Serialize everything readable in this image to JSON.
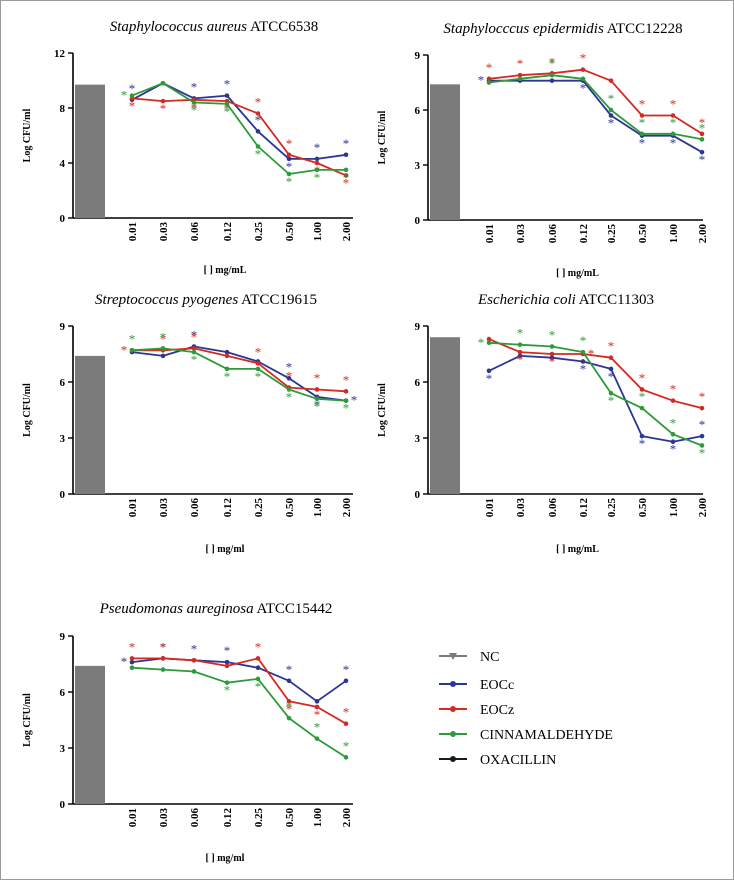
{
  "colors": {
    "NC": "#7b7b7b",
    "EOCc": "#2b3592",
    "EOCz": "#d32a22",
    "CINNAMALDEHYDE": "#2e9a3a",
    "OXACILLIN": "#1a1a1a"
  },
  "legend": [
    {
      "name": "NC",
      "marker": "triangle"
    },
    {
      "name": "EOCc",
      "marker": "circle"
    },
    {
      "name": "EOCz",
      "marker": "circle"
    },
    {
      "name": "CINNAMALDEHYDE",
      "marker": "circle"
    },
    {
      "name": "OXACILLIN",
      "marker": "circle"
    }
  ],
  "chart_data": [
    {
      "type": "line",
      "title_italic": "Staphylococcus aureus",
      "title_rest": " ATCC6538",
      "ylabel": "Log CFU/ml",
      "xlabel": "[ ] mg/mL",
      "ylim": [
        0,
        12
      ],
      "yticks": [
        "0",
        "4",
        "8",
        "12"
      ],
      "categories": [
        "0.01",
        "0.03",
        "0.06",
        "0.12",
        "0.25",
        "0.50",
        "1.00",
        "2.00"
      ],
      "nc_value": 9.7,
      "series": [
        {
          "name": "EOCc",
          "values": [
            8.6,
            9.8,
            8.7,
            8.9,
            6.3,
            4.3,
            4.3,
            4.6
          ],
          "stars": [
            "above",
            "none",
            "above",
            "above",
            "above",
            "below",
            "above",
            "above"
          ]
        },
        {
          "name": "EOCz",
          "values": [
            8.7,
            8.5,
            8.6,
            8.5,
            7.6,
            4.6,
            4.0,
            3.1
          ],
          "stars": [
            "below",
            "below",
            "below",
            "below",
            "above",
            "above",
            "below",
            "below"
          ]
        },
        {
          "name": "CINNAMALDEHYDE",
          "values": [
            8.9,
            9.8,
            8.4,
            8.3,
            5.2,
            3.2,
            3.5,
            3.5
          ],
          "stars": [
            "left",
            "none",
            "below",
            "below",
            "below",
            "below",
            "below",
            "below"
          ]
        }
      ]
    },
    {
      "type": "line",
      "title_italic": "Staphylocccus epidermidis",
      "title_rest": " ATCC12228",
      "ylabel": "Log CFU/ml",
      "xlabel": "[ ] mg/mL",
      "ylim": [
        0,
        9
      ],
      "yticks": [
        "0",
        "3",
        "6",
        "9"
      ],
      "categories": [
        "0.01",
        "0.03",
        "0.06",
        "0.12",
        "0.25",
        "0.50",
        "1.00",
        "2.00"
      ],
      "nc_value": 7.4,
      "series": [
        {
          "name": "EOCc",
          "values": [
            7.6,
            7.6,
            7.6,
            7.6,
            5.7,
            4.6,
            4.6,
            3.7
          ],
          "stars": [
            "left",
            "none",
            "none",
            "below",
            "below",
            "below",
            "below",
            "below"
          ]
        },
        {
          "name": "EOCz",
          "values": [
            7.7,
            7.9,
            8.0,
            8.2,
            7.6,
            5.7,
            5.7,
            4.7
          ],
          "stars": [
            "above",
            "above",
            "above",
            "above",
            "none",
            "above",
            "above",
            "above"
          ]
        },
        {
          "name": "CINNAMALDEHYDE",
          "values": [
            7.5,
            7.7,
            7.9,
            7.7,
            6.0,
            4.7,
            4.7,
            4.4
          ],
          "stars": [
            "none",
            "none",
            "above",
            "none",
            "above",
            "above",
            "above",
            "above"
          ]
        }
      ]
    },
    {
      "type": "line",
      "title_italic": "Streptococcus pyogenes",
      "title_rest": " ATCC19615",
      "ylabel": "Log CFU/ml",
      "xlabel": "[ ] mg/ml",
      "ylim": [
        0,
        9
      ],
      "yticks": [
        "0",
        "3",
        "6",
        "9"
      ],
      "categories": [
        "0.01",
        "0.03",
        "0.06",
        "0.12",
        "0.25",
        "0.50",
        "1.00",
        "2.00"
      ],
      "nc_value": 7.4,
      "series": [
        {
          "name": "EOCc",
          "values": [
            7.6,
            7.4,
            7.9,
            7.6,
            7.1,
            6.2,
            5.2,
            5.0
          ],
          "stars": [
            "none",
            "none",
            "above",
            "none",
            "none",
            "above",
            "below",
            "right"
          ]
        },
        {
          "name": "EOCz",
          "values": [
            7.7,
            7.7,
            7.8,
            7.4,
            7.0,
            5.7,
            5.6,
            5.5
          ],
          "stars": [
            "left",
            "above",
            "above",
            "none",
            "above",
            "above",
            "above",
            "above"
          ]
        },
        {
          "name": "CINNAMALDEHYDE",
          "values": [
            7.7,
            7.8,
            7.6,
            6.7,
            6.7,
            5.6,
            5.1,
            5.0
          ],
          "stars": [
            "above",
            "above",
            "below",
            "below",
            "below",
            "below",
            "below",
            "below"
          ]
        }
      ]
    },
    {
      "type": "line",
      "title_italic": "Escherichia coli",
      "title_rest": " ATCC11303",
      "ylabel": "Log CFU/ml",
      "xlabel": "[ ] mg/mL",
      "ylim": [
        0,
        9
      ],
      "yticks": [
        "0",
        "3",
        "6",
        "9"
      ],
      "categories": [
        "0.01",
        "0.03",
        "0.06",
        "0.12",
        "0.25",
        "0.50",
        "1.00",
        "2.00"
      ],
      "nc_value": 8.4,
      "series": [
        {
          "name": "EOCc",
          "values": [
            6.6,
            7.4,
            7.3,
            7.1,
            6.7,
            3.1,
            2.8,
            3.1
          ],
          "stars": [
            "below",
            "none",
            "none",
            "below",
            "below",
            "below",
            "below",
            "above"
          ]
        },
        {
          "name": "EOCz",
          "values": [
            8.3,
            7.6,
            7.5,
            7.5,
            7.3,
            5.6,
            5.0,
            4.6
          ],
          "stars": [
            "none",
            "below",
            "below",
            "right",
            "above",
            "above",
            "above",
            "above"
          ]
        },
        {
          "name": "CINNAMALDEHYDE",
          "values": [
            8.1,
            8.0,
            7.9,
            7.6,
            5.4,
            4.6,
            3.2,
            2.6
          ],
          "stars": [
            "left",
            "above",
            "above",
            "above",
            "below",
            "above",
            "above",
            "below"
          ]
        }
      ]
    },
    {
      "type": "line",
      "title_italic": "Pseudomonas aureginosa",
      "title_rest": " ATCC15442",
      "ylabel": "Log CFU/ml",
      "xlabel": "[ ] mg/ml",
      "ylim": [
        0,
        9
      ],
      "yticks": [
        "0",
        "3",
        "6",
        "9"
      ],
      "categories": [
        "0.01",
        "0.03",
        "0.06",
        "0.12",
        "0.25",
        "0.50",
        "1.00",
        "2.00"
      ],
      "nc_value": 7.4,
      "series": [
        {
          "name": "EOCc",
          "values": [
            7.6,
            7.8,
            7.7,
            7.6,
            7.3,
            6.6,
            5.5,
            6.6
          ],
          "stars": [
            "left",
            "above",
            "above",
            "above",
            "none",
            "above",
            "below",
            "above"
          ]
        },
        {
          "name": "EOCz",
          "values": [
            7.8,
            7.8,
            7.7,
            7.4,
            7.8,
            5.5,
            5.2,
            4.3
          ],
          "stars": [
            "above",
            "above",
            "none",
            "none",
            "above",
            "below",
            "below",
            "above"
          ]
        },
        {
          "name": "CINNAMALDEHYDE",
          "values": [
            7.3,
            7.2,
            7.1,
            6.5,
            6.7,
            4.6,
            3.5,
            2.5
          ],
          "stars": [
            "none",
            "none",
            "none",
            "below",
            "below",
            "above",
            "above",
            "above"
          ]
        }
      ]
    }
  ]
}
